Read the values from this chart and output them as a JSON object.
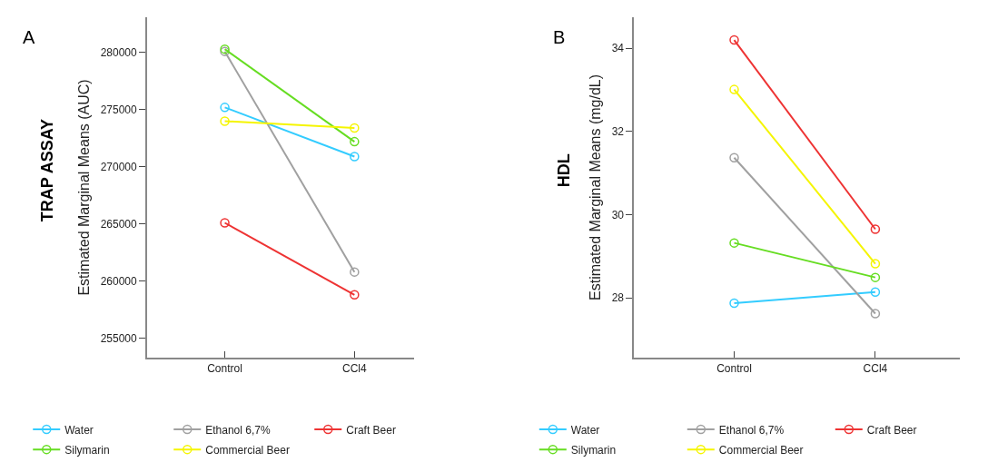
{
  "chart_data": [
    {
      "type": "line",
      "title": "TRAP ASSAY",
      "ylabel": "Estimated Marginal Means (AUC)",
      "annotations": [
        "A"
      ],
      "categories": [
        "Control",
        "CCl4"
      ],
      "ylim": [
        253300,
        283100
      ],
      "yticks": [
        255000,
        260000,
        265000,
        270000,
        275000,
        280000
      ],
      "marker": "circle",
      "legend": "bottom",
      "series": [
        {
          "name": "Water",
          "color": "#33ccff",
          "values": [
            275200,
            270900
          ]
        },
        {
          "name": "Ethanol 6,7%",
          "color": "#a0a0a0",
          "values": [
            280100,
            260800
          ]
        },
        {
          "name": "Craft Beer",
          "color": "#ee3333",
          "values": [
            265100,
            258800
          ]
        },
        {
          "name": "Silymarin",
          "color": "#66dd22",
          "values": [
            280300,
            272200
          ]
        },
        {
          "name": "Commercial Beer",
          "color": "#f5f500",
          "values": [
            274000,
            273400
          ]
        }
      ]
    },
    {
      "type": "line",
      "title": "HDL",
      "ylabel": "Estimated Marginal Means (mg/dL)",
      "annotations": [
        "B"
      ],
      "categories": [
        "Control",
        "CCl4"
      ],
      "ylim": [
        26.56,
        34.75
      ],
      "yticks": [
        28,
        30,
        32,
        34
      ],
      "marker": "circle",
      "legend": "bottom",
      "series": [
        {
          "name": "Water",
          "color": "#33ccff",
          "values": [
            27.87,
            28.14
          ]
        },
        {
          "name": "Ethanol 6,7%",
          "color": "#a0a0a0",
          "values": [
            31.37,
            27.62
          ]
        },
        {
          "name": "Craft Beer",
          "color": "#ee3333",
          "values": [
            34.2,
            29.65
          ]
        },
        {
          "name": "Silymarin",
          "color": "#66dd22",
          "values": [
            29.32,
            28.49
          ]
        },
        {
          "name": "Commercial Beer",
          "color": "#f5f500",
          "values": [
            33.01,
            28.82
          ]
        }
      ]
    }
  ]
}
